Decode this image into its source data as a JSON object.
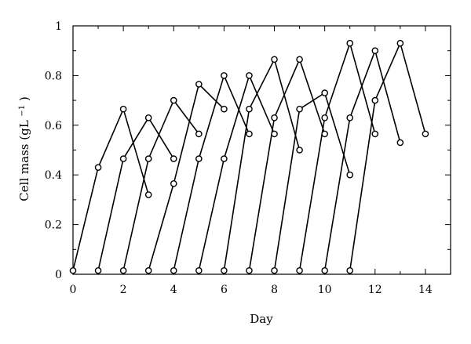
{
  "chart_data": {
    "type": "line",
    "title": "",
    "xlabel": "Day",
    "ylabel_main": "Cell mass (gL",
    "ylabel_sup": "−1",
    "ylabel_close": ")",
    "xlim": [
      0,
      15
    ],
    "ylim": [
      0,
      1
    ],
    "xticks": [
      0,
      2,
      4,
      6,
      8,
      10,
      12,
      14
    ],
    "xticks_minor": [
      1,
      3,
      5,
      7,
      9,
      11,
      13,
      15
    ],
    "yticks": [
      0,
      0.2,
      0.4,
      0.6,
      0.8,
      1
    ],
    "ytick_labels": [
      "0",
      "0.2",
      "0.4",
      "0.6",
      "0.8",
      "1"
    ],
    "yticks_minor": [
      0.1,
      0.3,
      0.5,
      0.7,
      0.9
    ],
    "grid": false,
    "legend": "none",
    "colors": {
      "line": "#000000",
      "marker_fill": "#ffffff"
    },
    "series": [
      {
        "x": [
          0,
          1,
          2,
          3
        ],
        "y": [
          0.015,
          0.43,
          0.665,
          0.32
        ]
      },
      {
        "x": [
          1,
          2,
          3,
          4
        ],
        "y": [
          0.015,
          0.465,
          0.63,
          0.465
        ]
      },
      {
        "x": [
          2,
          3,
          4,
          5
        ],
        "y": [
          0.015,
          0.465,
          0.7,
          0.565
        ]
      },
      {
        "x": [
          3,
          4,
          5,
          6
        ],
        "y": [
          0.015,
          0.365,
          0.765,
          0.665
        ]
      },
      {
        "x": [
          4,
          5,
          6,
          7
        ],
        "y": [
          0.015,
          0.465,
          0.8,
          0.565
        ]
      },
      {
        "x": [
          5,
          6,
          7,
          8
        ],
        "y": [
          0.015,
          0.465,
          0.8,
          0.565
        ]
      },
      {
        "x": [
          6,
          7,
          8,
          9
        ],
        "y": [
          0.015,
          0.665,
          0.865,
          0.5
        ]
      },
      {
        "x": [
          7,
          8,
          9,
          10
        ],
        "y": [
          0.015,
          0.63,
          0.865,
          0.565
        ]
      },
      {
        "x": [
          8,
          9,
          10,
          11
        ],
        "y": [
          0.015,
          0.665,
          0.73,
          0.4
        ]
      },
      {
        "x": [
          9,
          10,
          11,
          12
        ],
        "y": [
          0.015,
          0.63,
          0.93,
          0.565
        ]
      },
      {
        "x": [
          10,
          11,
          12,
          13
        ],
        "y": [
          0.015,
          0.63,
          0.9,
          0.53
        ]
      },
      {
        "x": [
          11,
          12,
          13,
          14
        ],
        "y": [
          0.015,
          0.7,
          0.93,
          0.565
        ]
      }
    ]
  }
}
